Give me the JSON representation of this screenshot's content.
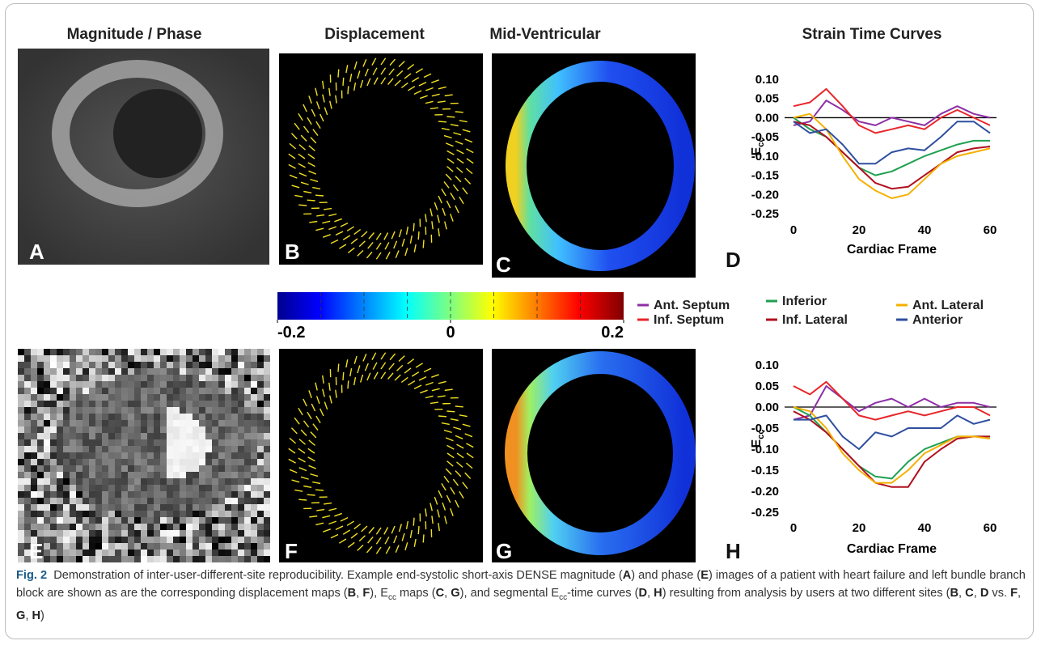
{
  "column_titles": [
    "Magnitude / Phase",
    "Displacement",
    "Mid-Ventricular",
    "Strain Time Curves"
  ],
  "panel_letters": [
    "A",
    "B",
    "C",
    "D",
    "E",
    "F",
    "G",
    "H"
  ],
  "colorbar": {
    "lim": [
      -0.2,
      0.2
    ],
    "ticks": [
      -0.2,
      0,
      0.2
    ]
  },
  "caption": [
    {
      "text": "Fig. 2",
      "style": "title"
    },
    "  Demonstration of inter-user-different-site reproducibility. Example end-systolic short-axis DENSE magnitude (",
    {
      "text": "A",
      "style": "b"
    },
    ") and phase (",
    {
      "text": "E",
      "style": "b"
    },
    ") images of a patient with heart failure and left bundle branch block are shown as are the corresponding displacement maps (",
    {
      "text": "B",
      "style": "b"
    },
    ", ",
    {
      "text": "F",
      "style": "b"
    },
    "), E",
    {
      "text": "cc",
      "style": "sub"
    },
    " maps (",
    {
      "text": "C",
      "style": "b"
    },
    ", ",
    {
      "text": "G",
      "style": "b"
    },
    "), and segmental E",
    {
      "text": "cc",
      "style": "sub"
    },
    "-time curves (",
    {
      "text": "D",
      "style": "b"
    },
    ", ",
    {
      "text": "H",
      "style": "b"
    },
    ") resulting from analysis by users at two different sites (",
    {
      "text": "B",
      "style": "b"
    },
    ", ",
    {
      "text": "C",
      "style": "b"
    },
    ", ",
    {
      "text": "D",
      "style": "b"
    },
    " vs. ",
    {
      "text": "F",
      "style": "b"
    },
    ", ",
    {
      "text": "G",
      "style": "b"
    },
    ", ",
    {
      "text": "H",
      "style": "b"
    },
    ")"
  ],
  "chart_data": [
    {
      "type": "line",
      "xlabel": "Cardiac Frame",
      "ylabel": "E",
      "ylabel_sub": "cc",
      "zero_line": true,
      "x": [
        0,
        5,
        10,
        15,
        20,
        25,
        30,
        35,
        40,
        45,
        50,
        55,
        60
      ],
      "xlim": [
        0,
        60
      ],
      "xticks": [
        0,
        20,
        40,
        60
      ],
      "ylim": [
        -0.25,
        0.1
      ],
      "yticks": [
        {
          "value": 0.1,
          "label": "0.10"
        },
        {
          "value": 0.05,
          "label": "0.05"
        },
        {
          "value": 0,
          "label": "0.00"
        },
        {
          "value": -0.05,
          "label": "-0.05"
        },
        {
          "value": -0.1,
          "label": "-0.10"
        },
        {
          "value": -0.15,
          "label": "-0.15"
        },
        {
          "value": -0.2,
          "label": "-0.20"
        },
        {
          "value": -0.25,
          "label": "-0.25"
        }
      ],
      "series": [
        {
          "name": "Ant. Septum",
          "color": "#8e2fa6",
          "values": [
            -0.02,
            -0.01,
            0.045,
            0.02,
            -0.01,
            -0.02,
            0.0,
            -0.01,
            -0.02,
            0.01,
            0.03,
            0.01,
            0.0
          ]
        },
        {
          "name": "Inf. Septum",
          "color": "#e8262a",
          "values": [
            0.03,
            0.04,
            0.075,
            0.03,
            -0.02,
            -0.04,
            -0.03,
            -0.02,
            -0.03,
            0.0,
            0.02,
            0.0,
            -0.02
          ]
        },
        {
          "name": "Inferior",
          "color": "#1fa050",
          "values": [
            0.0,
            -0.03,
            -0.05,
            -0.09,
            -0.13,
            -0.15,
            -0.14,
            -0.12,
            -0.1,
            -0.085,
            -0.07,
            -0.06,
            -0.06
          ]
        },
        {
          "name": "Inf. Lateral",
          "color": "#b0101e",
          "values": [
            -0.01,
            -0.02,
            -0.05,
            -0.09,
            -0.13,
            -0.17,
            -0.185,
            -0.18,
            -0.15,
            -0.12,
            -0.09,
            -0.08,
            -0.075
          ]
        },
        {
          "name": "Ant. Lateral",
          "color": "#f5b000",
          "values": [
            0.0,
            0.01,
            -0.03,
            -0.1,
            -0.16,
            -0.19,
            -0.21,
            -0.2,
            -0.16,
            -0.12,
            -0.1,
            -0.09,
            -0.08
          ]
        },
        {
          "name": "Anterior",
          "color": "#2f4f9f",
          "values": [
            -0.01,
            -0.04,
            -0.03,
            -0.07,
            -0.12,
            -0.12,
            -0.09,
            -0.08,
            -0.085,
            -0.05,
            -0.01,
            -0.01,
            -0.04
          ]
        }
      ]
    },
    {
      "type": "line",
      "xlabel": "Cardiac Frame",
      "ylabel": "E",
      "ylabel_sub": "cc",
      "zero_line": true,
      "x": [
        0,
        5,
        10,
        15,
        20,
        25,
        30,
        35,
        40,
        45,
        50,
        55,
        60
      ],
      "xlim": [
        0,
        60
      ],
      "xticks": [
        0,
        20,
        40,
        60
      ],
      "ylim": [
        -0.25,
        0.1
      ],
      "yticks": [
        {
          "value": 0.1,
          "label": "0.10"
        },
        {
          "value": 0.05,
          "label": "0.05"
        },
        {
          "value": 0,
          "label": "0.00"
        },
        {
          "value": -0.05,
          "label": "-0.05"
        },
        {
          "value": -0.1,
          "label": "-0.10"
        },
        {
          "value": -0.15,
          "label": "-0.15"
        },
        {
          "value": -0.2,
          "label": "-0.20"
        },
        {
          "value": -0.25,
          "label": "-0.25"
        }
      ],
      "series": [
        {
          "color": "#8e2fa6",
          "values": [
            -0.03,
            -0.02,
            0.05,
            0.02,
            -0.01,
            0.01,
            0.02,
            0.0,
            0.02,
            0.0,
            0.01,
            0.01,
            0.0
          ]
        },
        {
          "color": "#e8262a",
          "values": [
            0.05,
            0.03,
            0.06,
            0.02,
            -0.02,
            -0.03,
            -0.02,
            -0.01,
            -0.02,
            -0.01,
            0.0,
            0.0,
            -0.02
          ]
        },
        {
          "color": "#1fa050",
          "values": [
            0.0,
            -0.02,
            -0.06,
            -0.1,
            -0.14,
            -0.165,
            -0.17,
            -0.13,
            -0.1,
            -0.085,
            -0.07,
            -0.07,
            -0.07
          ]
        },
        {
          "color": "#b0101e",
          "values": [
            -0.01,
            -0.03,
            -0.06,
            -0.1,
            -0.14,
            -0.18,
            -0.19,
            -0.19,
            -0.13,
            -0.1,
            -0.075,
            -0.07,
            -0.07
          ]
        },
        {
          "color": "#f5b000",
          "values": [
            0.0,
            -0.01,
            -0.05,
            -0.11,
            -0.15,
            -0.18,
            -0.18,
            -0.15,
            -0.11,
            -0.09,
            -0.07,
            -0.07,
            -0.075
          ]
        },
        {
          "color": "#2f4f9f",
          "values": [
            -0.03,
            -0.03,
            -0.02,
            -0.07,
            -0.1,
            -0.06,
            -0.07,
            -0.05,
            -0.05,
            -0.05,
            -0.02,
            -0.04,
            -0.03
          ]
        }
      ]
    }
  ]
}
